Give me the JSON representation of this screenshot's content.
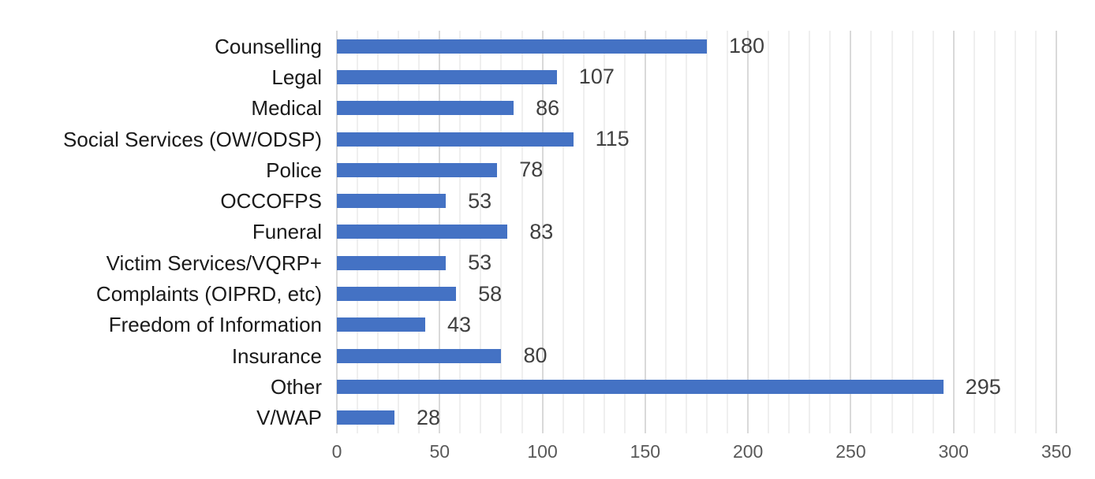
{
  "chart_data": {
    "type": "bar",
    "orientation": "horizontal",
    "title": "",
    "xlabel": "",
    "ylabel": "",
    "categories": [
      "Counselling",
      "Legal",
      "Medical",
      "Social Services (OW/ODSP)",
      "Police",
      "OCCOFPS",
      "Funeral",
      "Victim Services/VQRP+",
      "Complaints (OIPRD, etc)",
      "Freedom of Information",
      "Insurance",
      "Other",
      "V/WAP"
    ],
    "values": [
      180,
      107,
      86,
      115,
      78,
      53,
      83,
      53,
      58,
      43,
      80,
      295,
      28
    ],
    "data_labels": [
      "180",
      "107",
      "86",
      "115",
      "78",
      "53",
      "83",
      "53",
      "58",
      "43",
      "80",
      "295",
      "28"
    ],
    "xlim": [
      0,
      350
    ],
    "x_ticks": [
      "0",
      "50",
      "100",
      "150",
      "200",
      "250",
      "300",
      "350"
    ],
    "x_tick_values": [
      0,
      50,
      100,
      150,
      200,
      250,
      300,
      350
    ],
    "minor_grid_step": 10,
    "major_grid_step": 50,
    "grid": true,
    "legend": false,
    "colors": {
      "bar": "#4472C4",
      "value_label": "#404040",
      "category_label": "#1a1a1a",
      "tick_label": "#595959",
      "minor_gridline": "#EFEFEF",
      "major_gridline": "#D9D9D9",
      "background": "#FFFFFF"
    }
  }
}
